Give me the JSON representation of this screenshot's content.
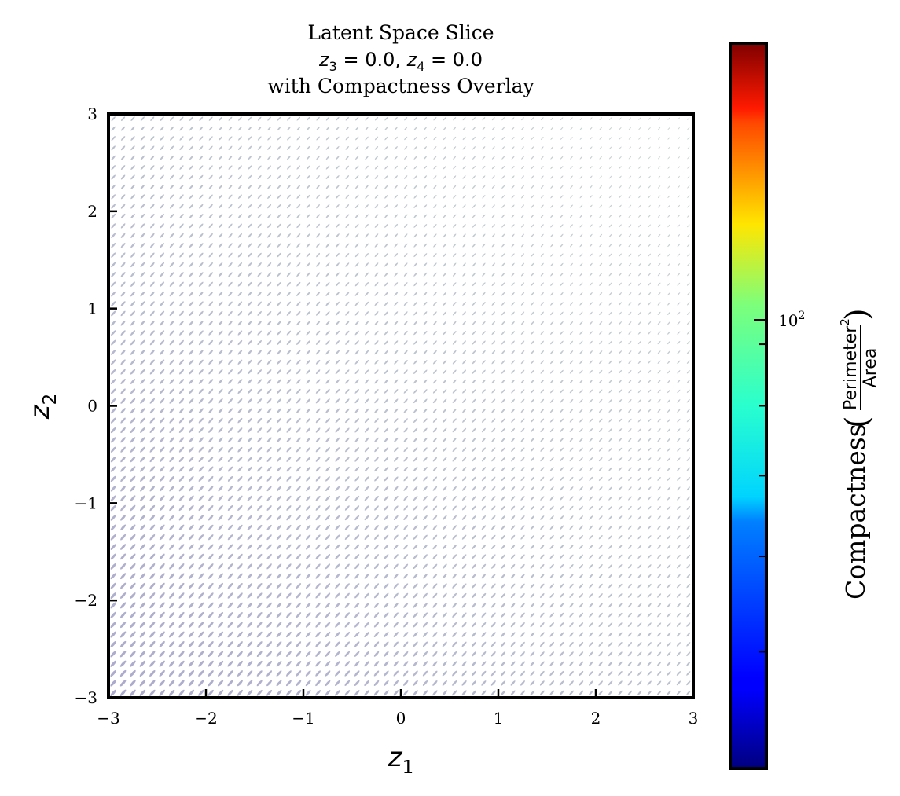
{
  "chart_data": {
    "type": "scatter",
    "title": {
      "line1": "Latent Space Slice",
      "line2_a_var": "z",
      "line2_a_sub": "3",
      "line2_a_val": " = 0.0, ",
      "line2_b_var": "z",
      "line2_b_sub": "4",
      "line2_b_val": " = 0.0",
      "line3": "with Compactness Overlay"
    },
    "xlabel": {
      "var": "z",
      "sub": "1"
    },
    "ylabel": {
      "var": "z",
      "sub": "2"
    },
    "xlim": [
      -3,
      3
    ],
    "ylim": [
      -3,
      3
    ],
    "xticks": [
      -3,
      -2,
      -1,
      0,
      1,
      2,
      3
    ],
    "yticks": [
      -3,
      -2,
      -1,
      0,
      1,
      2,
      3
    ],
    "xtick_labels": [
      "−3",
      "−2",
      "−1",
      "0",
      "1",
      "2",
      "3"
    ],
    "ytick_labels": [
      "−3",
      "−2",
      "−1",
      "0",
      "1",
      "2",
      "3"
    ],
    "grid": false,
    "glyph_grid": {
      "n_x": 60,
      "n_y": 60,
      "glyph": "small elongated blob per latent point, tilted ~45 degrees",
      "colors": {
        "lower_left": "#8f8dbd",
        "upper_right": "#9fb3ad"
      }
    },
    "colorbar": {
      "label_word": "Compactness",
      "fraction_num": "Perimeter",
      "fraction_num_sup": "2",
      "fraction_den": "Area",
      "scale": "log",
      "colormap": "jet",
      "tick_label_base": "10",
      "tick_label_exp": "2",
      "tick_value": 100,
      "range": [
        40,
        160
      ]
    }
  }
}
